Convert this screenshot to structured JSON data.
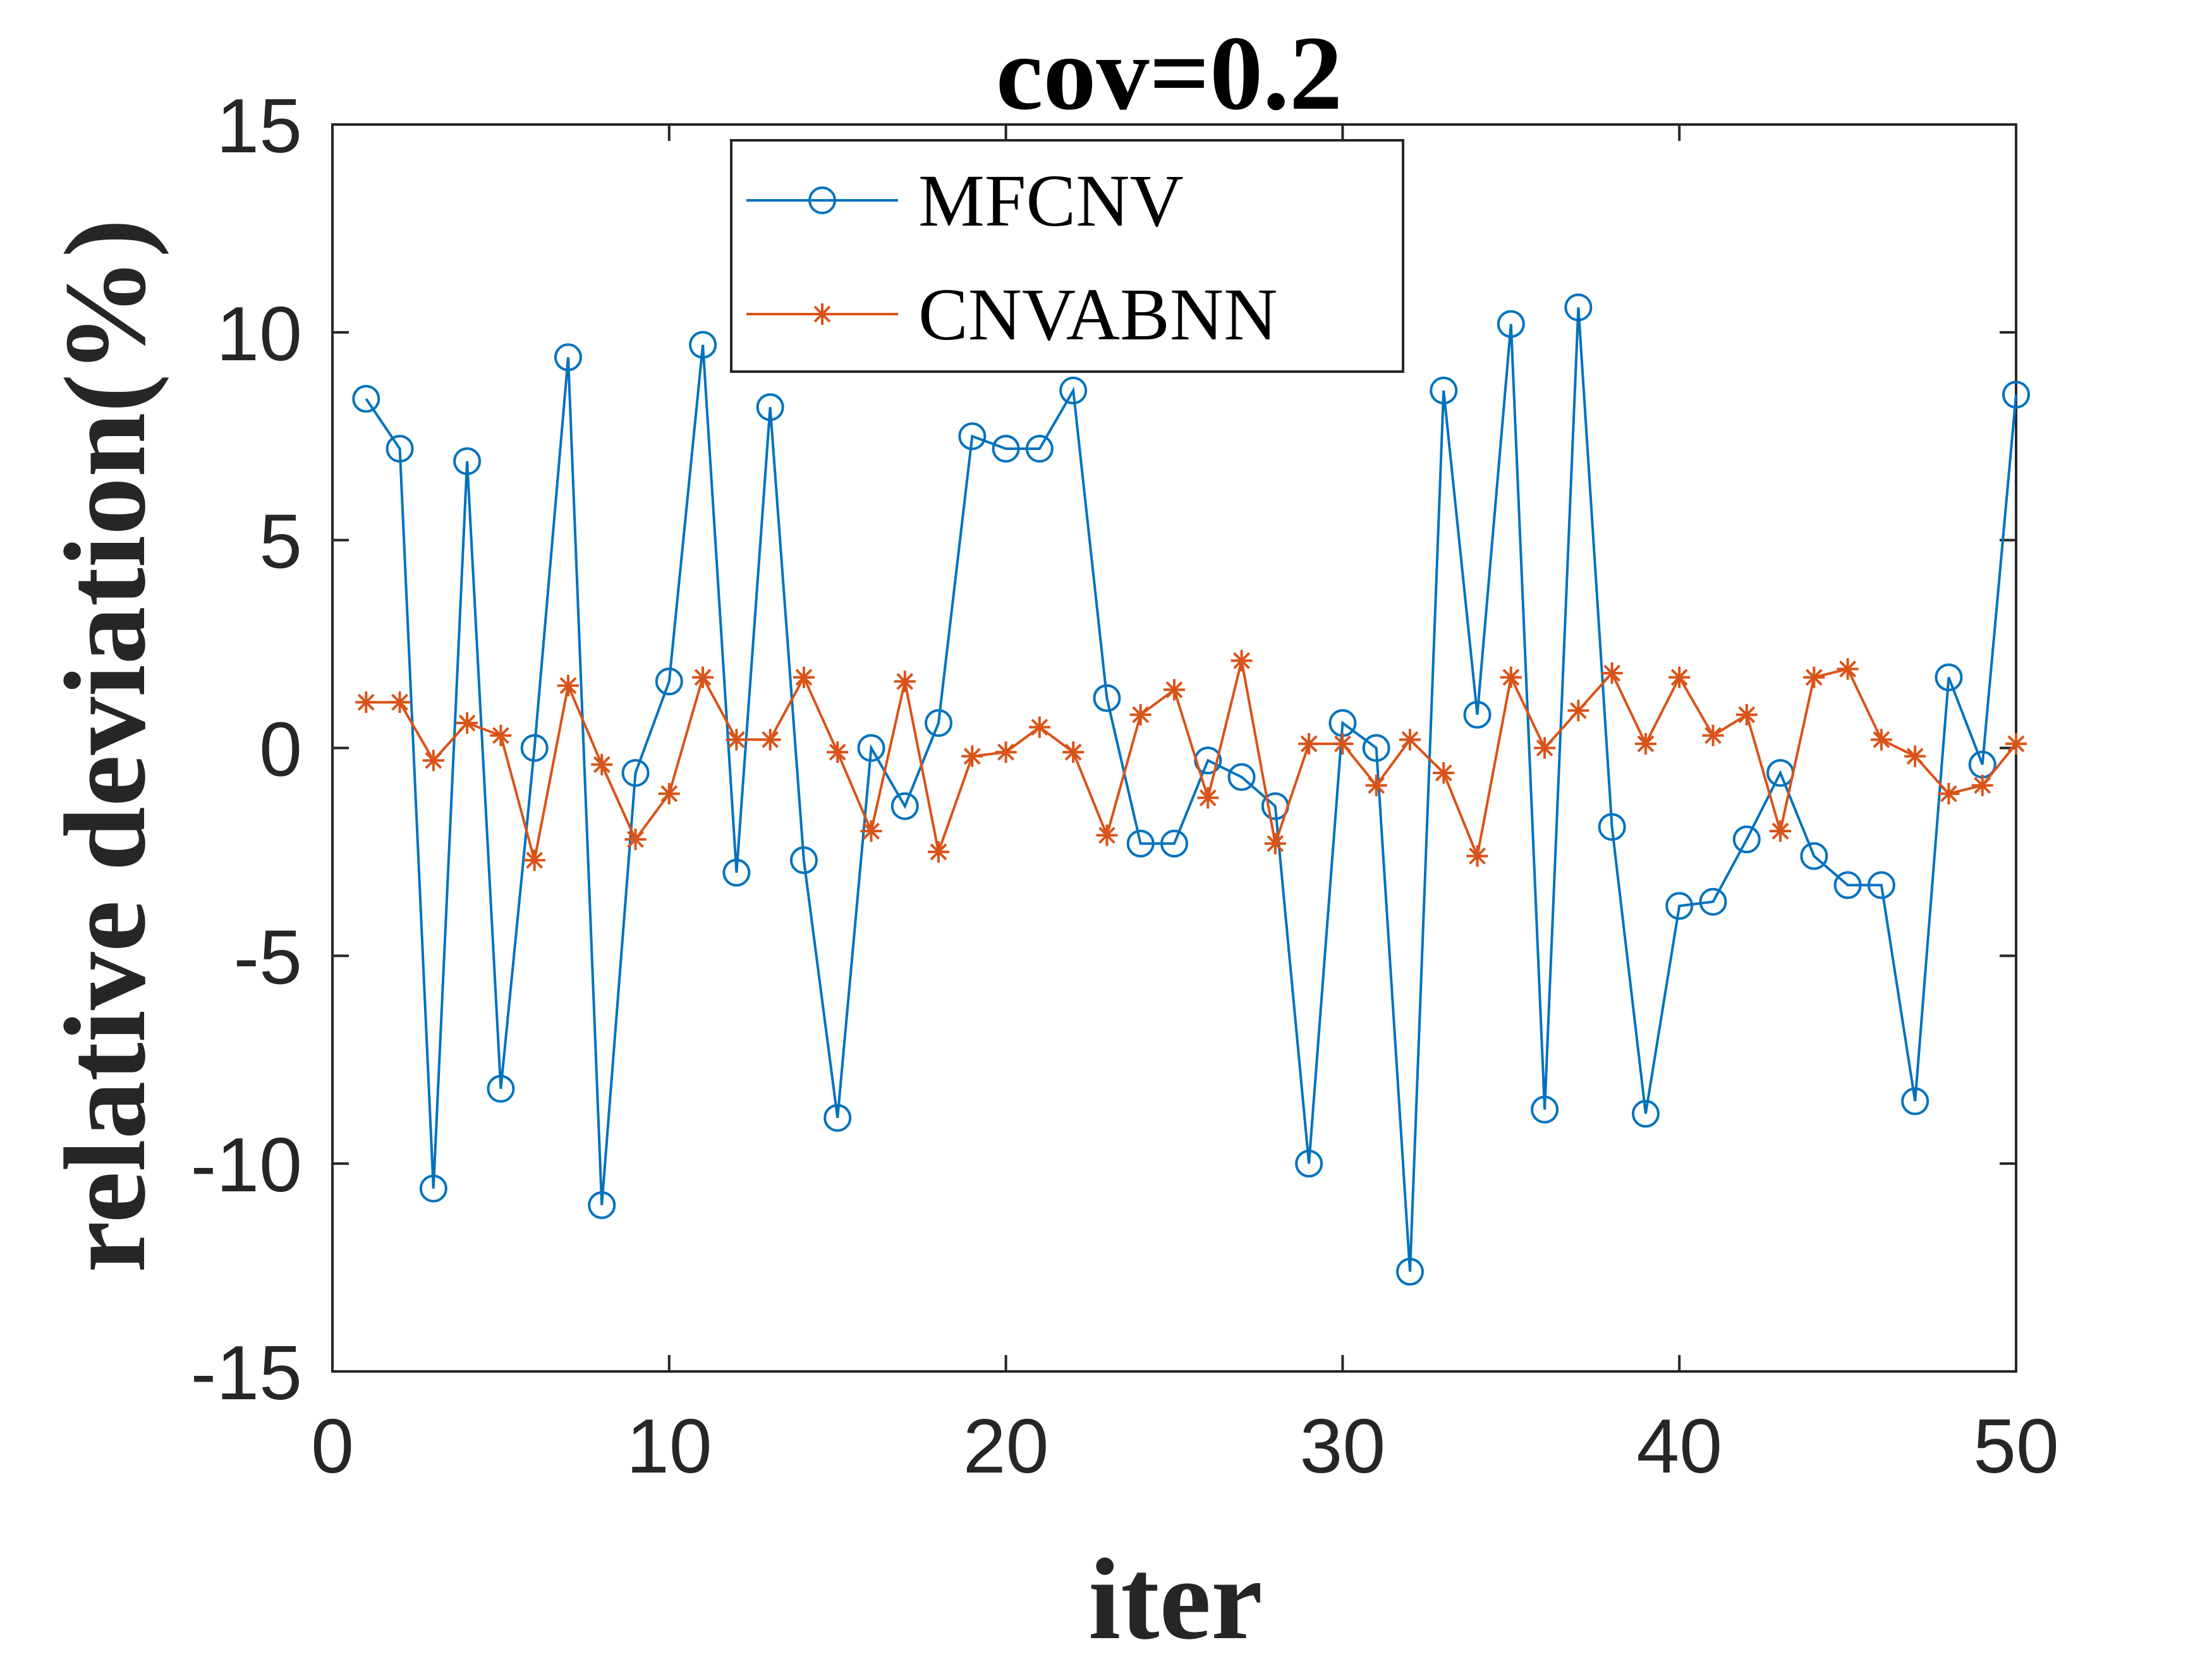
{
  "chart_data": {
    "type": "line",
    "title": "cov=0.2",
    "xlabel": "iter",
    "ylabel": "relative deviation(%)",
    "xlim": [
      0,
      50
    ],
    "ylim": [
      -15,
      15
    ],
    "xticks": [
      0,
      10,
      20,
      30,
      40,
      50
    ],
    "yticks": [
      -15,
      -10,
      -5,
      0,
      5,
      10,
      15
    ],
    "grid": false,
    "legend_position": "top-center",
    "x": [
      1,
      2,
      3,
      4,
      5,
      6,
      7,
      8,
      9,
      10,
      11,
      12,
      13,
      14,
      15,
      16,
      17,
      18,
      19,
      20,
      21,
      22,
      23,
      24,
      25,
      26,
      27,
      28,
      29,
      30,
      31,
      32,
      33,
      34,
      35,
      36,
      37,
      38,
      39,
      40,
      41,
      42,
      43,
      44,
      45,
      46,
      47,
      48,
      49,
      50
    ],
    "series": [
      {
        "name": "MFCNV",
        "color": "#0072BD",
        "marker": "circle",
        "values": [
          8.4,
          7.2,
          -10.6,
          6.9,
          -8.2,
          0.0,
          9.4,
          -11.0,
          -0.6,
          1.6,
          9.7,
          -3.0,
          8.2,
          -2.7,
          -8.9,
          0.0,
          -1.4,
          0.6,
          7.5,
          7.2,
          7.2,
          8.6,
          1.2,
          -2.3,
          -2.3,
          -0.3,
          -0.7,
          -1.4,
          -10.0,
          0.6,
          0.0,
          -12.6,
          8.6,
          0.8,
          10.2,
          -8.7,
          10.6,
          -1.9,
          -8.8,
          -3.8,
          -3.7,
          -2.2,
          -0.6,
          -2.6,
          -3.3,
          -3.3,
          -8.5,
          1.7,
          -0.4,
          8.5
        ]
      },
      {
        "name": "CNVABNN",
        "color": "#D95319",
        "marker": "asterisk",
        "values": [
          1.1,
          1.1,
          -0.3,
          0.6,
          0.3,
          -2.7,
          1.5,
          -0.4,
          -2.2,
          -1.1,
          1.7,
          0.2,
          0.2,
          1.7,
          -0.1,
          -2.0,
          1.6,
          -2.5,
          -0.2,
          -0.1,
          0.5,
          -0.1,
          -2.1,
          0.8,
          1.4,
          -1.2,
          2.1,
          -2.3,
          0.1,
          0.1,
          -0.9,
          0.2,
          -0.6,
          -2.6,
          1.7,
          0.0,
          0.9,
          1.8,
          0.1,
          1.7,
          0.3,
          0.8,
          -2.0,
          1.7,
          1.9,
          0.2,
          -0.2,
          -1.1,
          -0.9,
          0.1
        ]
      }
    ]
  }
}
